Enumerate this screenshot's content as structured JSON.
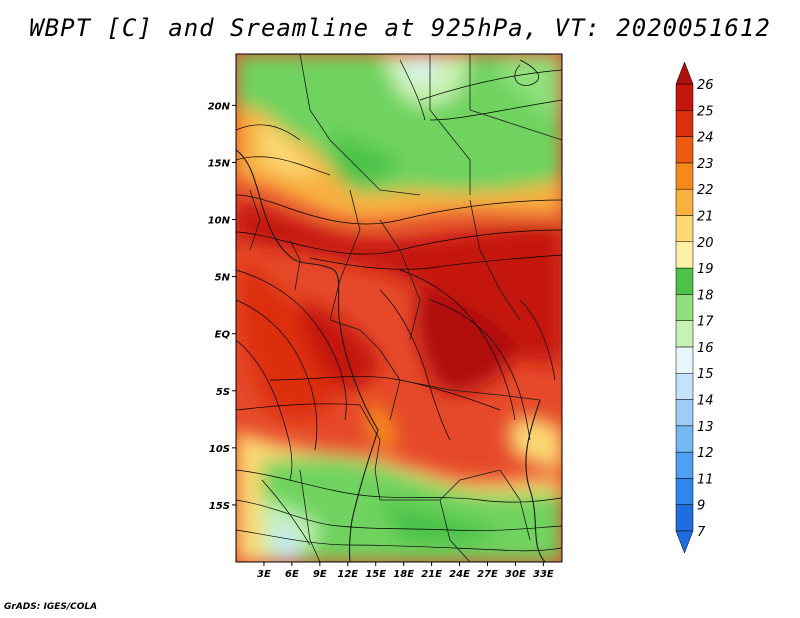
{
  "title": "WBPT [C] and Sreamline at 925hPa, VT: 2020051612",
  "credit": "GrADS: IGES/COLA",
  "map": {
    "lat_labels": [
      "20N",
      "15N",
      "10N",
      "5N",
      "EQ",
      "5S",
      "10S",
      "15S"
    ],
    "lat_values": [
      20,
      15,
      10,
      5,
      0,
      -5,
      -10,
      -15
    ],
    "lon_labels": [
      "3E",
      "6E",
      "9E",
      "12E",
      "15E",
      "18E",
      "21E",
      "24E",
      "27E",
      "30E",
      "33E"
    ],
    "lon_values": [
      3,
      6,
      9,
      12,
      15,
      18,
      21,
      24,
      27,
      30,
      33
    ],
    "lat_range": [
      -20,
      24.5
    ],
    "lon_range": [
      0,
      35
    ]
  },
  "colorbar": {
    "labels": [
      "7",
      "9",
      "11",
      "12",
      "13",
      "14",
      "15",
      "16",
      "17",
      "18",
      "19",
      "20",
      "21",
      "22",
      "23",
      "24",
      "25",
      "26"
    ],
    "colors": [
      "#1e6ee0",
      "#2f86ec",
      "#4fa0f0",
      "#74b8f4",
      "#9bcdf7",
      "#c4e3fb",
      "#e6f6fb",
      "#c6f2b6",
      "#8fe07c",
      "#4cc248",
      "#fdf1a8",
      "#fbd873",
      "#f8b040",
      "#f48a1c",
      "#ec5a14",
      "#dc2f10",
      "#c4160e"
    ],
    "min_color": "#1e6ee0",
    "max_color": "#b0100c"
  }
}
